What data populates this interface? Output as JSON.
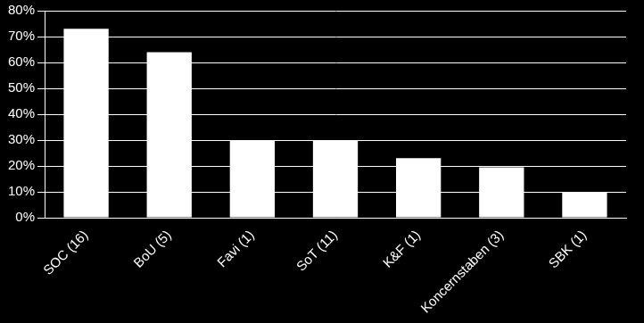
{
  "chart_data": {
    "type": "bar",
    "categories": [
      "SOC (16)",
      "BoU (5)",
      "Favi (1)",
      "SoT (11)",
      "K&F (1)",
      "Koncernstaben (3)",
      "SBK (1)"
    ],
    "values": [
      73,
      64,
      30,
      30,
      23,
      19.5,
      10
    ],
    "color": "#ffffff",
    "ylim": [
      0,
      80
    ],
    "yticks": [
      {
        "value": 0,
        "label": "0%"
      },
      {
        "value": 10,
        "label": "10%"
      },
      {
        "value": 20,
        "label": "20%"
      },
      {
        "value": 30,
        "label": "30%"
      },
      {
        "value": 40,
        "label": "40%"
      },
      {
        "value": 50,
        "label": "50%"
      },
      {
        "value": 60,
        "label": "60%"
      },
      {
        "value": 70,
        "label": "70%"
      },
      {
        "value": 80,
        "label": "80%"
      }
    ],
    "grid": true
  }
}
